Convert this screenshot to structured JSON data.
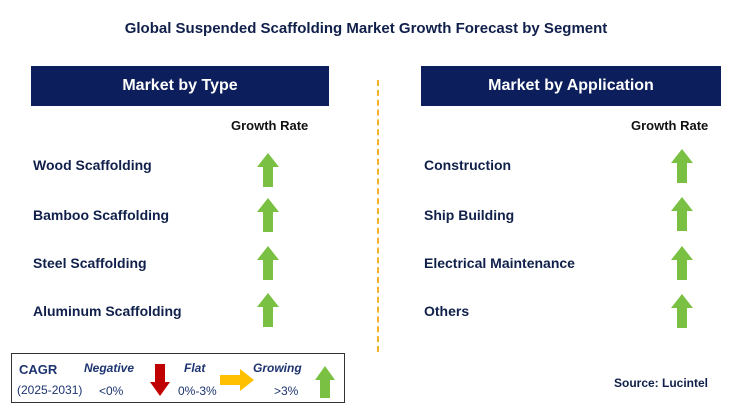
{
  "title": "Global Suspended Scaffolding Market Growth Forecast by Segment",
  "left_panel": {
    "header": "Market by Type",
    "growth_label": "Growth Rate",
    "items": [
      {
        "label": "Wood Scaffolding",
        "trend": "growing"
      },
      {
        "label": "Bamboo Scaffolding",
        "trend": "growing"
      },
      {
        "label": "Steel Scaffolding",
        "trend": "growing"
      },
      {
        "label": "Aluminum Scaffolding",
        "trend": "growing"
      }
    ]
  },
  "right_panel": {
    "header": "Market by Application",
    "growth_label": "Growth Rate",
    "items": [
      {
        "label": "Construction",
        "trend": "growing"
      },
      {
        "label": "Ship Building",
        "trend": "growing"
      },
      {
        "label": "Electrical Maintenance",
        "trend": "growing"
      },
      {
        "label": "Others",
        "trend": "growing"
      }
    ]
  },
  "legend": {
    "cagr_label": "CAGR",
    "period": "(2025-2031)",
    "negative": {
      "label": "Negative",
      "range": "<0%",
      "icon": "down-arrow-icon",
      "color": "#c00000"
    },
    "flat": {
      "label": "Flat",
      "range": "0%-3%",
      "icon": "right-arrow-icon",
      "color": "#ffc000"
    },
    "growing": {
      "label": "Growing",
      "range": ">3%",
      "icon": "up-arrow-icon",
      "color": "#7ac143"
    }
  },
  "source": "Source: Lucintel"
}
